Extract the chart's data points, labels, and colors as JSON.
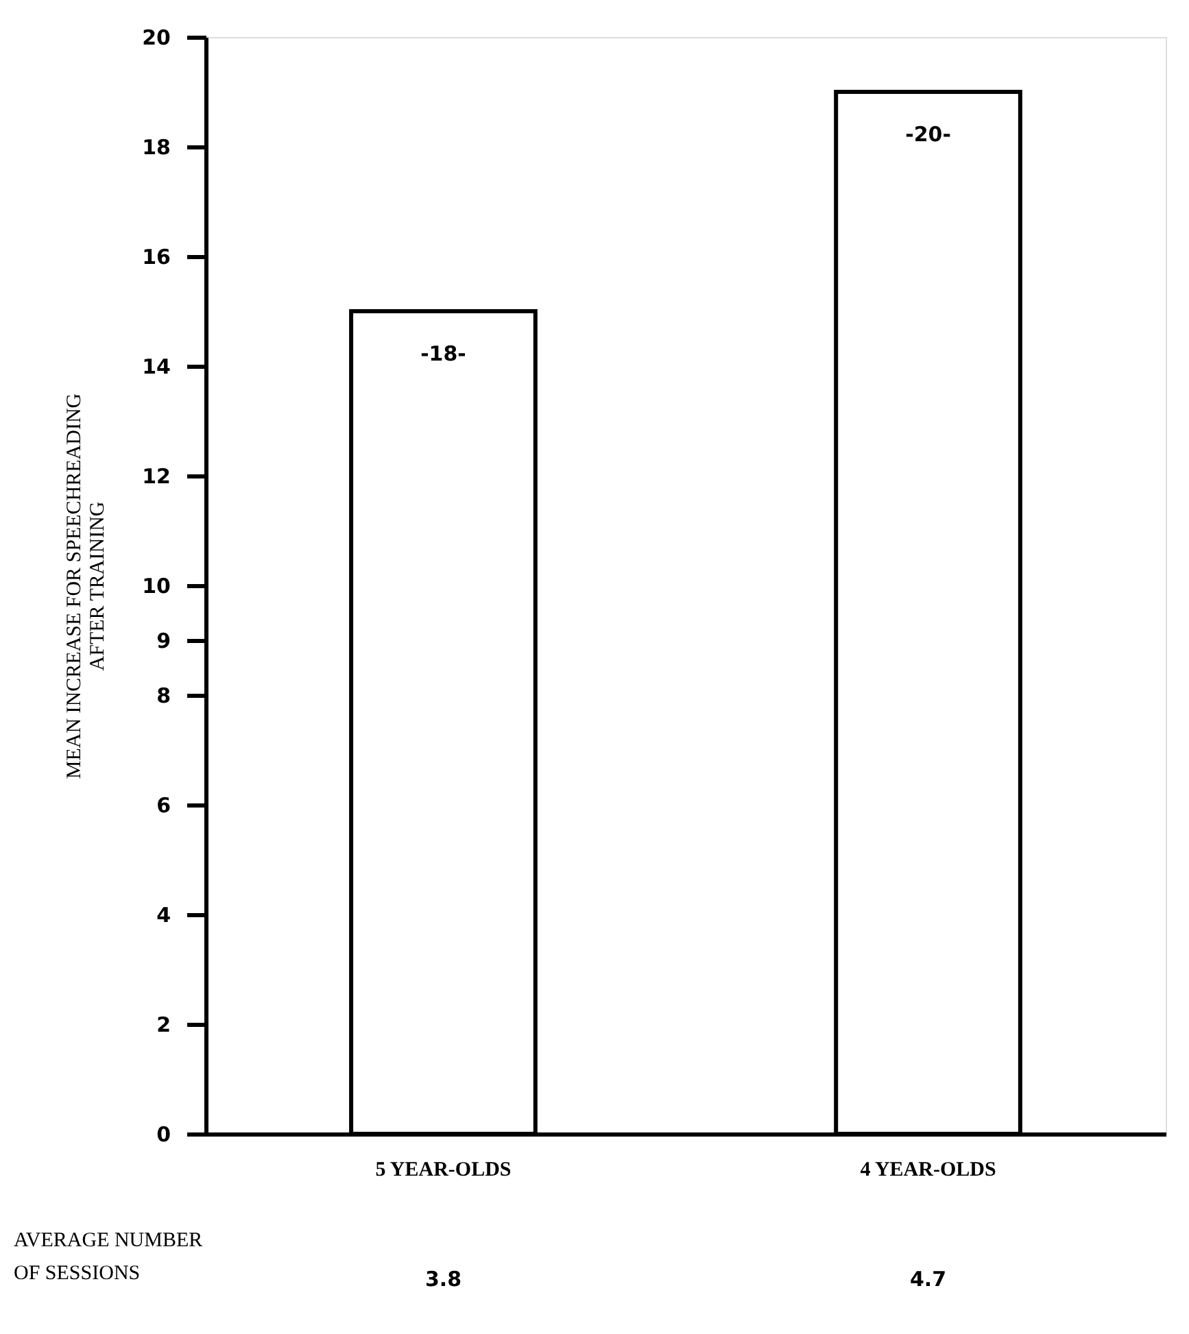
{
  "chart_data": {
    "type": "bar",
    "ylabel": "MEAN INCREASE FOR SPEECHREADING AFTER TRAINING",
    "categories": [
      "5 YEAR-OLDS",
      "4 YEAR-OLDS"
    ],
    "values": [
      15,
      19
    ],
    "color": "#ffffff",
    "ylim": [
      0,
      20
    ],
    "yticks": [
      0,
      2,
      4,
      6,
      8,
      9,
      10,
      12,
      14,
      16,
      18,
      20
    ],
    "grid": false,
    "annotations": [
      "-18-",
      "-20-",
      "AVERAGE NUMBER OF SESSIONS",
      "3.8",
      "4.7"
    ]
  }
}
